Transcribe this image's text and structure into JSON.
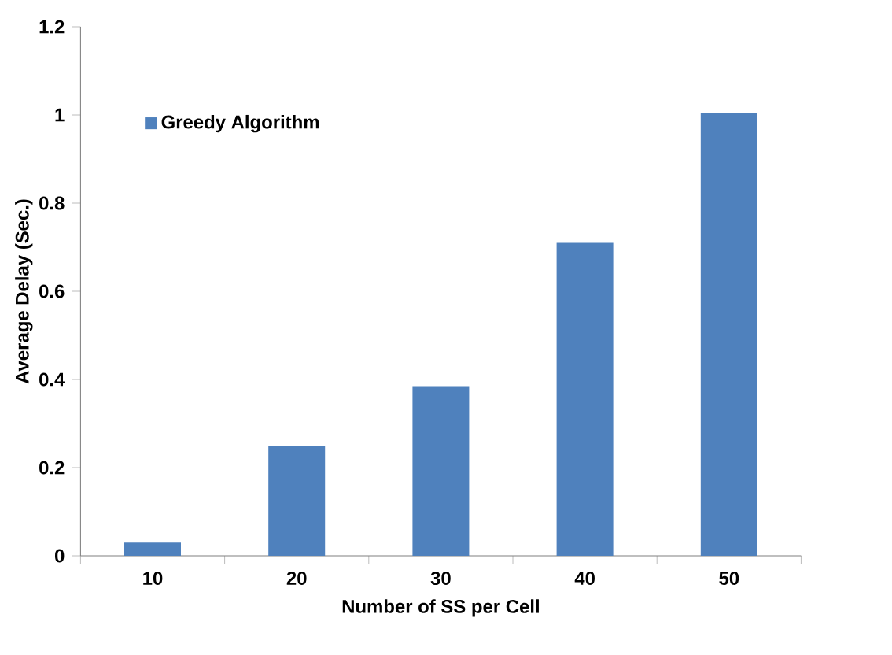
{
  "chart_data": {
    "type": "bar",
    "xlabel": "Number of SS per Cell",
    "ylabel": "Average Delay (Sec.)",
    "categories": [
      "10",
      "20",
      "30",
      "40",
      "50"
    ],
    "series": [
      {
        "name": "Greedy Algorithm",
        "color": "#4f81bd",
        "values": [
          0.03,
          0.25,
          0.385,
          0.71,
          1.005
        ]
      }
    ],
    "ylim": [
      0,
      1.2
    ],
    "yticks": [
      0,
      0.2,
      0.4,
      0.6,
      0.8,
      1,
      1.2
    ],
    "legend": "top left",
    "grid": false
  }
}
